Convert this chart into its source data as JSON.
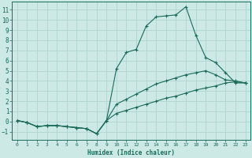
{
  "xlabel": "Humidex (Indice chaleur)",
  "bg_color": "#cce9e5",
  "grid_color": "#b0d4d0",
  "line_color": "#1a6b5a",
  "xlim": [
    -0.5,
    23.5
  ],
  "ylim": [
    -1.8,
    11.8
  ],
  "xticks": [
    0,
    1,
    2,
    3,
    4,
    5,
    6,
    7,
    8,
    9,
    10,
    11,
    12,
    13,
    14,
    15,
    16,
    17,
    18,
    19,
    20,
    21,
    22,
    23
  ],
  "yticks": [
    -1,
    0,
    1,
    2,
    3,
    4,
    5,
    6,
    7,
    8,
    9,
    10,
    11
  ],
  "line1_x": [
    0,
    1,
    2,
    3,
    4,
    5,
    6,
    7,
    8,
    9,
    10,
    11,
    12,
    13,
    14,
    15,
    16,
    17,
    18,
    19,
    20,
    21,
    22,
    23
  ],
  "line1_y": [
    0.1,
    -0.1,
    -0.5,
    -0.4,
    -0.4,
    -0.5,
    -0.6,
    -0.7,
    -1.2,
    0.1,
    5.2,
    6.8,
    7.1,
    9.4,
    10.3,
    10.4,
    10.5,
    11.3,
    8.5,
    6.3,
    5.8,
    4.8,
    3.8,
    3.8
  ],
  "line2_x": [
    0,
    1,
    2,
    3,
    4,
    5,
    6,
    7,
    8,
    9,
    10,
    11,
    12,
    13,
    14,
    15,
    16,
    17,
    18,
    19,
    20,
    21,
    22,
    23
  ],
  "line2_y": [
    0.1,
    -0.1,
    -0.5,
    -0.4,
    -0.4,
    -0.5,
    -0.6,
    -0.7,
    -1.2,
    0.1,
    1.7,
    2.2,
    2.7,
    3.2,
    3.7,
    4.0,
    4.3,
    4.6,
    4.8,
    5.0,
    4.6,
    4.1,
    4.0,
    3.8
  ],
  "line3_x": [
    0,
    1,
    2,
    3,
    4,
    5,
    6,
    7,
    8,
    9,
    10,
    11,
    12,
    13,
    14,
    15,
    16,
    17,
    18,
    19,
    20,
    21,
    22,
    23
  ],
  "line3_y": [
    0.1,
    -0.1,
    -0.5,
    -0.4,
    -0.4,
    -0.5,
    -0.6,
    -0.7,
    -1.2,
    0.1,
    0.8,
    1.1,
    1.4,
    1.7,
    2.0,
    2.3,
    2.5,
    2.8,
    3.1,
    3.3,
    3.5,
    3.8,
    3.9,
    3.8
  ]
}
